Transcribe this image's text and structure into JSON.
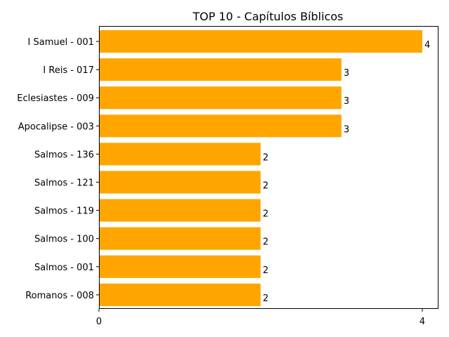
{
  "chart_data": {
    "type": "bar",
    "orientation": "horizontal",
    "title": "TOP 10 - Capítulos Bíblicos",
    "xlabel": "",
    "ylabel": "",
    "categories": [
      "I Samuel - 001",
      "I Reis - 017",
      "Eclesiastes - 009",
      "Apocalipse - 003",
      "Salmos - 136",
      "Salmos - 121",
      "Salmos - 119",
      "Salmos - 100",
      "Salmos - 001",
      "Romanos - 008"
    ],
    "values": [
      4,
      3,
      3,
      3,
      2,
      2,
      2,
      2,
      2,
      2
    ],
    "xlim": [
      0,
      4.2
    ],
    "xticks": [
      0,
      4
    ],
    "xtick_labels": [
      "0",
      "4"
    ],
    "bar_color": "#ffa500",
    "grid": false,
    "legend": "none",
    "data_labels": true
  }
}
